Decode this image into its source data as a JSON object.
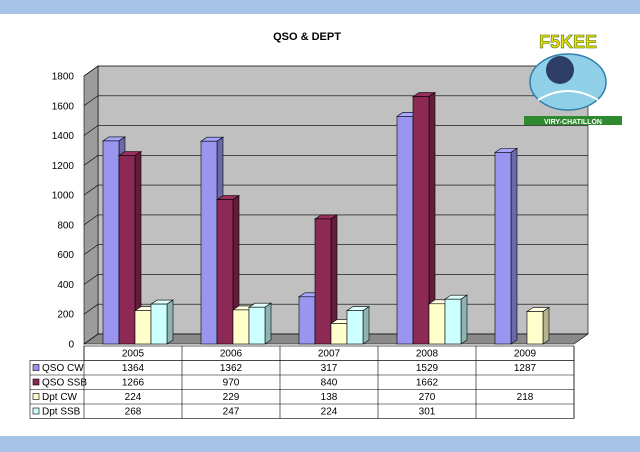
{
  "chart_data": {
    "type": "bar",
    "title": "QSO & DEPT",
    "categories": [
      "2005",
      "2006",
      "2007",
      "2008",
      "2009"
    ],
    "ylim": [
      0,
      1800
    ],
    "yticks": [
      0,
      200,
      400,
      600,
      800,
      1000,
      1200,
      1400,
      1600,
      1800
    ],
    "grid": true,
    "legend_placement": "table-below",
    "series": [
      {
        "name": "QSO CW",
        "values": [
          1364,
          1362,
          317,
          1529,
          1287
        ],
        "color": "#9a96f0"
      },
      {
        "name": "QSO SSB",
        "values": [
          1266,
          970,
          840,
          1662,
          null
        ],
        "color": "#8c2a55"
      },
      {
        "name": "Dpt CW",
        "values": [
          224,
          229,
          138,
          270,
          218
        ],
        "color": "#ffffcc"
      },
      {
        "name": "Dpt SSB",
        "values": [
          268,
          247,
          224,
          301,
          null
        ],
        "color": "#ccffff"
      }
    ]
  },
  "logo": {
    "callsign": "F5KEE",
    "city": "VIRY-CHATILLON"
  },
  "colors": {
    "plot_background": "#c0c0c0",
    "frame_bars": "#a7c4e6"
  }
}
